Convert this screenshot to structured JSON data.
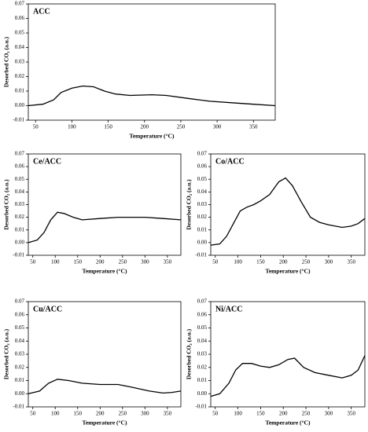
{
  "chart_data": [
    {
      "type": "line",
      "title": "ACC",
      "ylabel": "Desorbed CO₂ (a.u.)",
      "xlabel": "Temperature (°C)",
      "color": "#000000",
      "x": [
        40,
        60,
        75,
        85,
        100,
        115,
        130,
        145,
        160,
        180,
        210,
        230,
        260,
        290,
        320,
        350,
        380
      ],
      "values": [
        0.0,
        0.001,
        0.004,
        0.009,
        0.012,
        0.0135,
        0.013,
        0.01,
        0.008,
        0.007,
        0.0075,
        0.007,
        0.005,
        0.003,
        0.002,
        0.001,
        0.0
      ],
      "xlim": [
        40,
        380
      ],
      "xticks": [
        50,
        100,
        150,
        200,
        250,
        300,
        350
      ],
      "ylim": [
        -0.01,
        0.07
      ],
      "yticks": [
        {
          "value": -0.01,
          "label": "-0.01"
        },
        {
          "value": 0,
          "label": "0.00"
        },
        {
          "value": 0.01,
          "label": "0.01"
        },
        {
          "value": 0.02,
          "label": "0.02"
        },
        {
          "value": 0.03,
          "label": "0.03"
        },
        {
          "value": 0.04,
          "label": "0.04"
        },
        {
          "value": 0.05,
          "label": "0.05"
        },
        {
          "value": 0.06,
          "label": "0.06"
        },
        {
          "value": 0.07,
          "label": "0.07"
        }
      ]
    },
    {
      "type": "line",
      "title": "Ce/ACC",
      "ylabel": "Desorbed CO₂ (a.u.)",
      "xlabel": "Temperature (°C)",
      "color": "#000000",
      "x": [
        40,
        60,
        75,
        90,
        105,
        120,
        140,
        160,
        200,
        240,
        300,
        340,
        380
      ],
      "values": [
        0.0,
        0.002,
        0.008,
        0.018,
        0.024,
        0.023,
        0.02,
        0.018,
        0.019,
        0.02,
        0.02,
        0.019,
        0.018
      ],
      "xlim": [
        40,
        380
      ],
      "xticks": [
        50,
        100,
        150,
        200,
        250,
        300,
        350
      ],
      "ylim": [
        -0.01,
        0.07
      ],
      "yticks": [
        {
          "value": -0.01,
          "label": "-0.01"
        },
        {
          "value": 0,
          "label": "0.00"
        },
        {
          "value": 0.01,
          "label": "0.01"
        },
        {
          "value": 0.02,
          "label": "0.02"
        },
        {
          "value": 0.03,
          "label": "0.03"
        },
        {
          "value": 0.04,
          "label": "0.04"
        },
        {
          "value": 0.05,
          "label": "0.05"
        },
        {
          "value": 0.06,
          "label": "0.06"
        },
        {
          "value": 0.07,
          "label": "0.07"
        }
      ]
    },
    {
      "type": "line",
      "title": "Co/ACC",
      "ylabel": "Desorbed CO₂ (a.u.)",
      "xlabel": "Temperature (°C)",
      "color": "#000000",
      "x": [
        40,
        60,
        75,
        90,
        105,
        120,
        135,
        150,
        170,
        190,
        205,
        220,
        240,
        260,
        280,
        300,
        330,
        350,
        365,
        380
      ],
      "values": [
        -0.002,
        -0.001,
        0.005,
        0.015,
        0.025,
        0.028,
        0.03,
        0.033,
        0.038,
        0.048,
        0.051,
        0.045,
        0.032,
        0.02,
        0.016,
        0.014,
        0.012,
        0.013,
        0.015,
        0.019
      ],
      "xlim": [
        40,
        380
      ],
      "xticks": [
        50,
        100,
        150,
        200,
        250,
        300,
        350
      ],
      "ylim": [
        -0.01,
        0.07
      ],
      "yticks": [
        {
          "value": -0.01,
          "label": "-0.01"
        },
        {
          "value": 0,
          "label": "0.00"
        },
        {
          "value": 0.01,
          "label": "0.01"
        },
        {
          "value": 0.02,
          "label": "0.02"
        },
        {
          "value": 0.03,
          "label": "0.03"
        },
        {
          "value": 0.04,
          "label": "0.04"
        },
        {
          "value": 0.05,
          "label": "0.05"
        },
        {
          "value": 0.06,
          "label": "0.06"
        },
        {
          "value": 0.07,
          "label": "0.07"
        }
      ]
    },
    {
      "type": "line",
      "title": "Cu/ACC",
      "ylabel": "Desorbed CO₂ (a.u.)",
      "xlabel": "Temperature (°C)",
      "color": "#000000",
      "x": [
        40,
        65,
        85,
        105,
        130,
        160,
        200,
        240,
        270,
        310,
        340,
        360,
        380
      ],
      "values": [
        0.0,
        0.002,
        0.008,
        0.011,
        0.01,
        0.008,
        0.007,
        0.007,
        0.005,
        0.002,
        0.0005,
        0.001,
        0.002
      ],
      "xlim": [
        40,
        380
      ],
      "xticks": [
        50,
        100,
        150,
        200,
        250,
        300,
        350
      ],
      "ylim": [
        -0.01,
        0.07
      ],
      "yticks": [
        {
          "value": -0.01,
          "label": "-0.01"
        },
        {
          "value": 0,
          "label": "0.00"
        },
        {
          "value": 0.01,
          "label": "0.01"
        },
        {
          "value": 0.02,
          "label": "0.02"
        },
        {
          "value": 0.03,
          "label": "0.03"
        },
        {
          "value": 0.04,
          "label": "0.04"
        },
        {
          "value": 0.05,
          "label": "0.05"
        },
        {
          "value": 0.06,
          "label": "0.06"
        },
        {
          "value": 0.07,
          "label": "0.07"
        }
      ]
    },
    {
      "type": "line",
      "title": "Ni/ACC",
      "ylabel": "Desorbed CO₂ (a.u.)",
      "xlabel": "Temperature (°C)",
      "color": "#000000",
      "x": [
        40,
        60,
        80,
        95,
        110,
        130,
        150,
        170,
        190,
        210,
        225,
        245,
        270,
        300,
        330,
        350,
        365,
        380
      ],
      "values": [
        -0.002,
        0.0,
        0.008,
        0.018,
        0.023,
        0.023,
        0.021,
        0.02,
        0.022,
        0.026,
        0.027,
        0.02,
        0.016,
        0.014,
        0.012,
        0.014,
        0.018,
        0.029
      ],
      "xlim": [
        40,
        380
      ],
      "xticks": [
        50,
        100,
        150,
        200,
        250,
        300,
        350
      ],
      "ylim": [
        -0.01,
        0.07
      ],
      "yticks": [
        {
          "value": -0.01,
          "label": "-0.01"
        },
        {
          "value": 0,
          "label": "0.00"
        },
        {
          "value": 0.01,
          "label": "0.01"
        },
        {
          "value": 0.02,
          "label": "0.02"
        },
        {
          "value": 0.03,
          "label": "0.03"
        },
        {
          "value": 0.04,
          "label": "0.04"
        },
        {
          "value": 0.05,
          "label": "0.05"
        },
        {
          "value": 0.06,
          "label": "0.06"
        },
        {
          "value": 0.07,
          "label": "0.07"
        }
      ]
    }
  ]
}
